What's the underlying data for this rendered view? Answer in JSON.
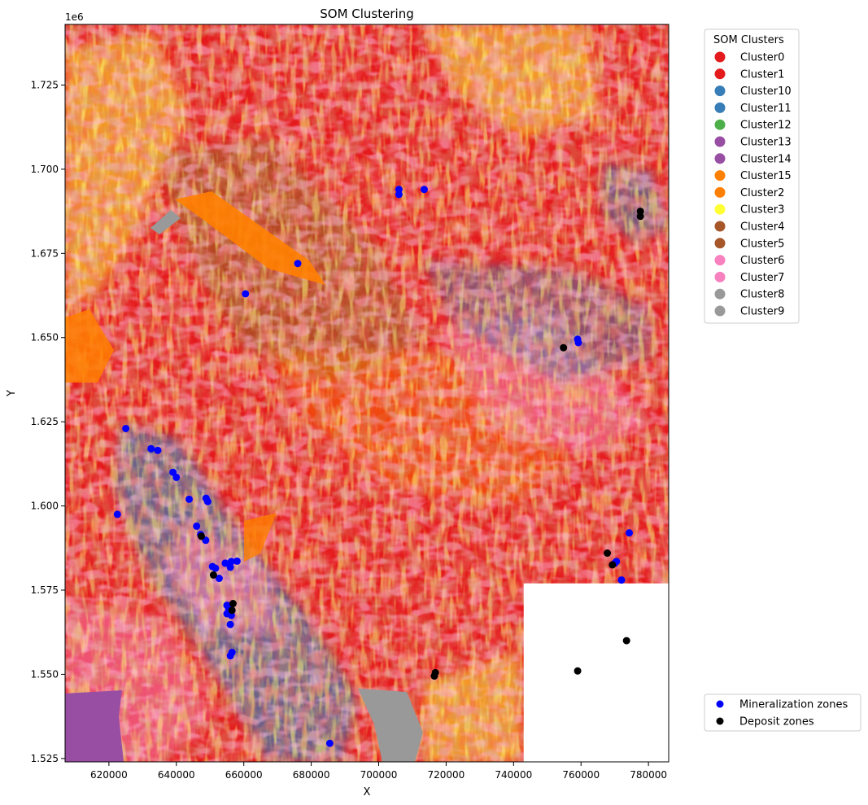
{
  "chart_data": {
    "type": "scatter",
    "title": "SOM Clustering",
    "xlabel": "X",
    "ylabel": "Y",
    "xlim": [
      607000,
      786000
    ],
    "ylim": [
      1524000,
      1743000
    ],
    "y_offset_label": "1e6",
    "x_ticks": [
      620000,
      640000,
      660000,
      680000,
      700000,
      720000,
      740000,
      760000,
      780000
    ],
    "x_tick_labels": [
      "620000",
      "640000",
      "660000",
      "680000",
      "700000",
      "720000",
      "740000",
      "760000",
      "780000"
    ],
    "y_ticks": [
      1525000,
      1550000,
      1575000,
      1600000,
      1625000,
      1650000,
      1675000,
      1700000,
      1725000
    ],
    "y_tick_labels": [
      "1.525",
      "1.550",
      "1.575",
      "1.600",
      "1.625",
      "1.650",
      "1.675",
      "1.700",
      "1.725"
    ],
    "grid": false,
    "raster_no_data_region": {
      "x": [
        743000,
        786000
      ],
      "y": [
        1524000,
        1577000
      ]
    },
    "cluster_legend": {
      "title": "SOM Clusters",
      "placement": "upper-right-outside",
      "entries": [
        {
          "name": "Cluster0",
          "color": "#e41a1c"
        },
        {
          "name": "Cluster1",
          "color": "#e41a1c"
        },
        {
          "name": "Cluster10",
          "color": "#377eb8"
        },
        {
          "name": "Cluster11",
          "color": "#377eb8"
        },
        {
          "name": "Cluster12",
          "color": "#4daf4a"
        },
        {
          "name": "Cluster13",
          "color": "#984ea3"
        },
        {
          "name": "Cluster14",
          "color": "#984ea3"
        },
        {
          "name": "Cluster15",
          "color": "#ff7f00"
        },
        {
          "name": "Cluster2",
          "color": "#ff7f00"
        },
        {
          "name": "Cluster3",
          "color": "#ffff33"
        },
        {
          "name": "Cluster4",
          "color": "#a65628"
        },
        {
          "name": "Cluster5",
          "color": "#a65628"
        },
        {
          "name": "Cluster6",
          "color": "#f781bf"
        },
        {
          "name": "Cluster7",
          "color": "#f781bf"
        },
        {
          "name": "Cluster8",
          "color": "#999999"
        },
        {
          "name": "Cluster9",
          "color": "#999999"
        }
      ]
    },
    "points_legend": {
      "placement": "lower-right-outside",
      "entries": [
        {
          "name": "Mineralization zones",
          "color": "#0000ff"
        },
        {
          "name": "Deposit zones",
          "color": "#000000"
        }
      ]
    },
    "series": [
      {
        "name": "Mineralization zones",
        "color": "#0000ff",
        "points": [
          [
            706000,
            1694000
          ],
          [
            706000,
            1692500
          ],
          [
            713500,
            1694000
          ],
          [
            676000,
            1672000
          ],
          [
            660500,
            1663000
          ],
          [
            759000,
            1649500
          ],
          [
            759200,
            1648500
          ],
          [
            625000,
            1623000
          ],
          [
            632500,
            1617000
          ],
          [
            634500,
            1616500
          ],
          [
            639000,
            1610000
          ],
          [
            640000,
            1608500
          ],
          [
            643800,
            1602000
          ],
          [
            648800,
            1602300
          ],
          [
            649300,
            1601300
          ],
          [
            622500,
            1597500
          ],
          [
            646000,
            1594000
          ],
          [
            647200,
            1591500
          ],
          [
            648700,
            1589800
          ],
          [
            774300,
            1592000
          ],
          [
            770500,
            1583500
          ],
          [
            770000,
            1583000
          ],
          [
            650700,
            1582000
          ],
          [
            651600,
            1581500
          ],
          [
            654500,
            1583000
          ],
          [
            656300,
            1583500
          ],
          [
            658000,
            1583600
          ],
          [
            656000,
            1581800
          ],
          [
            652700,
            1578500
          ],
          [
            772000,
            1578000
          ],
          [
            655000,
            1570500
          ],
          [
            655500,
            1569500
          ],
          [
            655000,
            1568000
          ],
          [
            656300,
            1567500
          ],
          [
            656000,
            1564800
          ],
          [
            656500,
            1556500
          ],
          [
            656000,
            1555500
          ],
          [
            685500,
            1529500
          ]
        ]
      },
      {
        "name": "Deposit zones",
        "color": "#000000",
        "points": [
          [
            777600,
            1687500
          ],
          [
            777600,
            1686000
          ],
          [
            754800,
            1647000
          ],
          [
            647400,
            1591000
          ],
          [
            767800,
            1586000
          ],
          [
            769300,
            1582500
          ],
          [
            651000,
            1579500
          ],
          [
            656800,
            1571000
          ],
          [
            656500,
            1569000
          ],
          [
            773500,
            1560000
          ],
          [
            716800,
            1550500
          ],
          [
            716500,
            1549500
          ],
          [
            759000,
            1551000
          ]
        ]
      }
    ]
  }
}
